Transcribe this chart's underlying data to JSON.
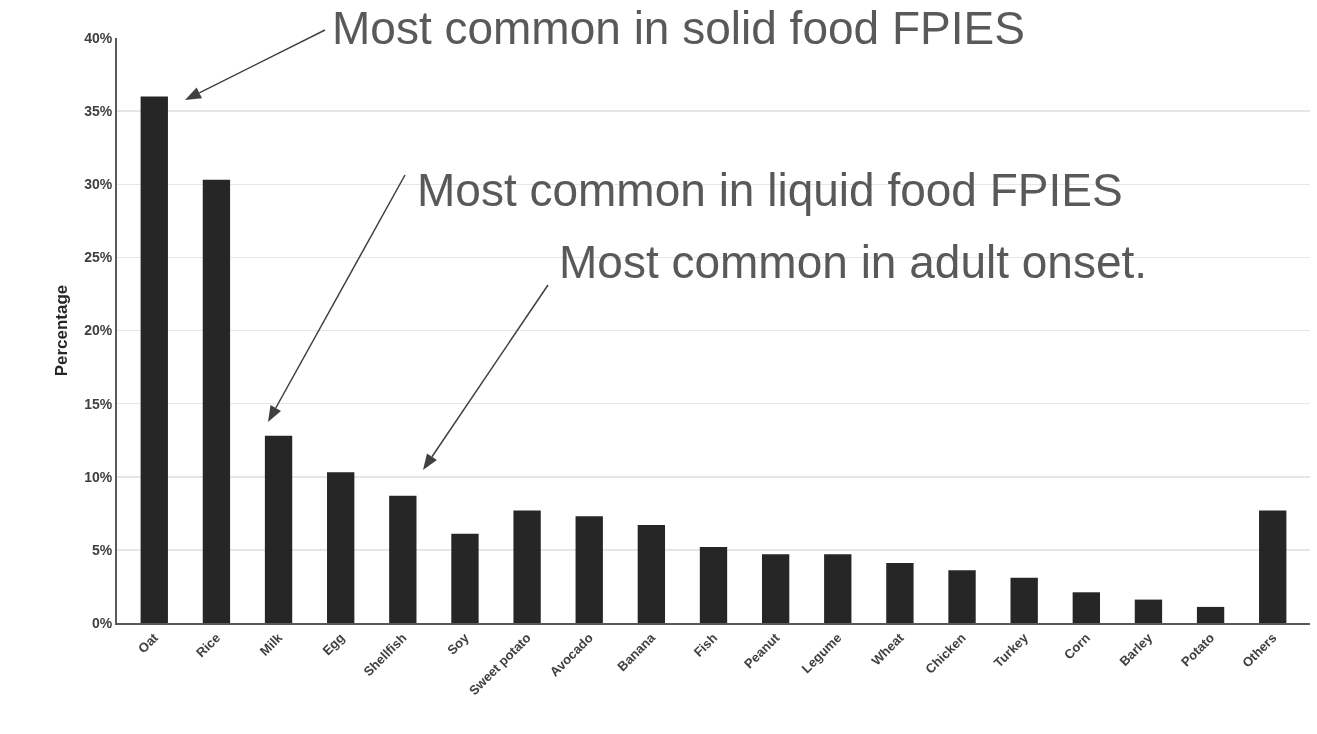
{
  "chart_data": {
    "type": "bar",
    "ylabel": "Percentage",
    "categories": [
      "Oat",
      "Rice",
      "Milk",
      "Egg",
      "Shellfish",
      "Soy",
      "Sweet potato",
      "Avocado",
      "Banana",
      "Fish",
      "Peanut",
      "Legume",
      "Wheat",
      "Chicken",
      "Turkey",
      "Corn",
      "Barley",
      "Potato",
      "Others"
    ],
    "values": [
      36,
      30.3,
      12.8,
      10.3,
      8.7,
      6.1,
      7.7,
      7.3,
      6.7,
      5.2,
      4.7,
      4.7,
      4.1,
      3.6,
      3.1,
      2.1,
      1.6,
      1.1,
      7.7
    ],
    "color": "#262626",
    "ylim": [
      0,
      40
    ],
    "yticks": [
      {
        "value": 0,
        "label": "0%"
      },
      {
        "value": 5,
        "label": "5%"
      },
      {
        "value": 10,
        "label": "10%"
      },
      {
        "value": 15,
        "label": "15%"
      },
      {
        "value": 20,
        "label": "20%"
      },
      {
        "value": 25,
        "label": "25%"
      },
      {
        "value": 30,
        "label": "30%"
      },
      {
        "value": 35,
        "label": "35%"
      },
      {
        "value": 40,
        "label": "40%"
      }
    ],
    "grid": "y",
    "annotations": [
      "Most common in solid food FPIES",
      "Most common in liquid food FPIES",
      "Most common in adult onset."
    ]
  }
}
